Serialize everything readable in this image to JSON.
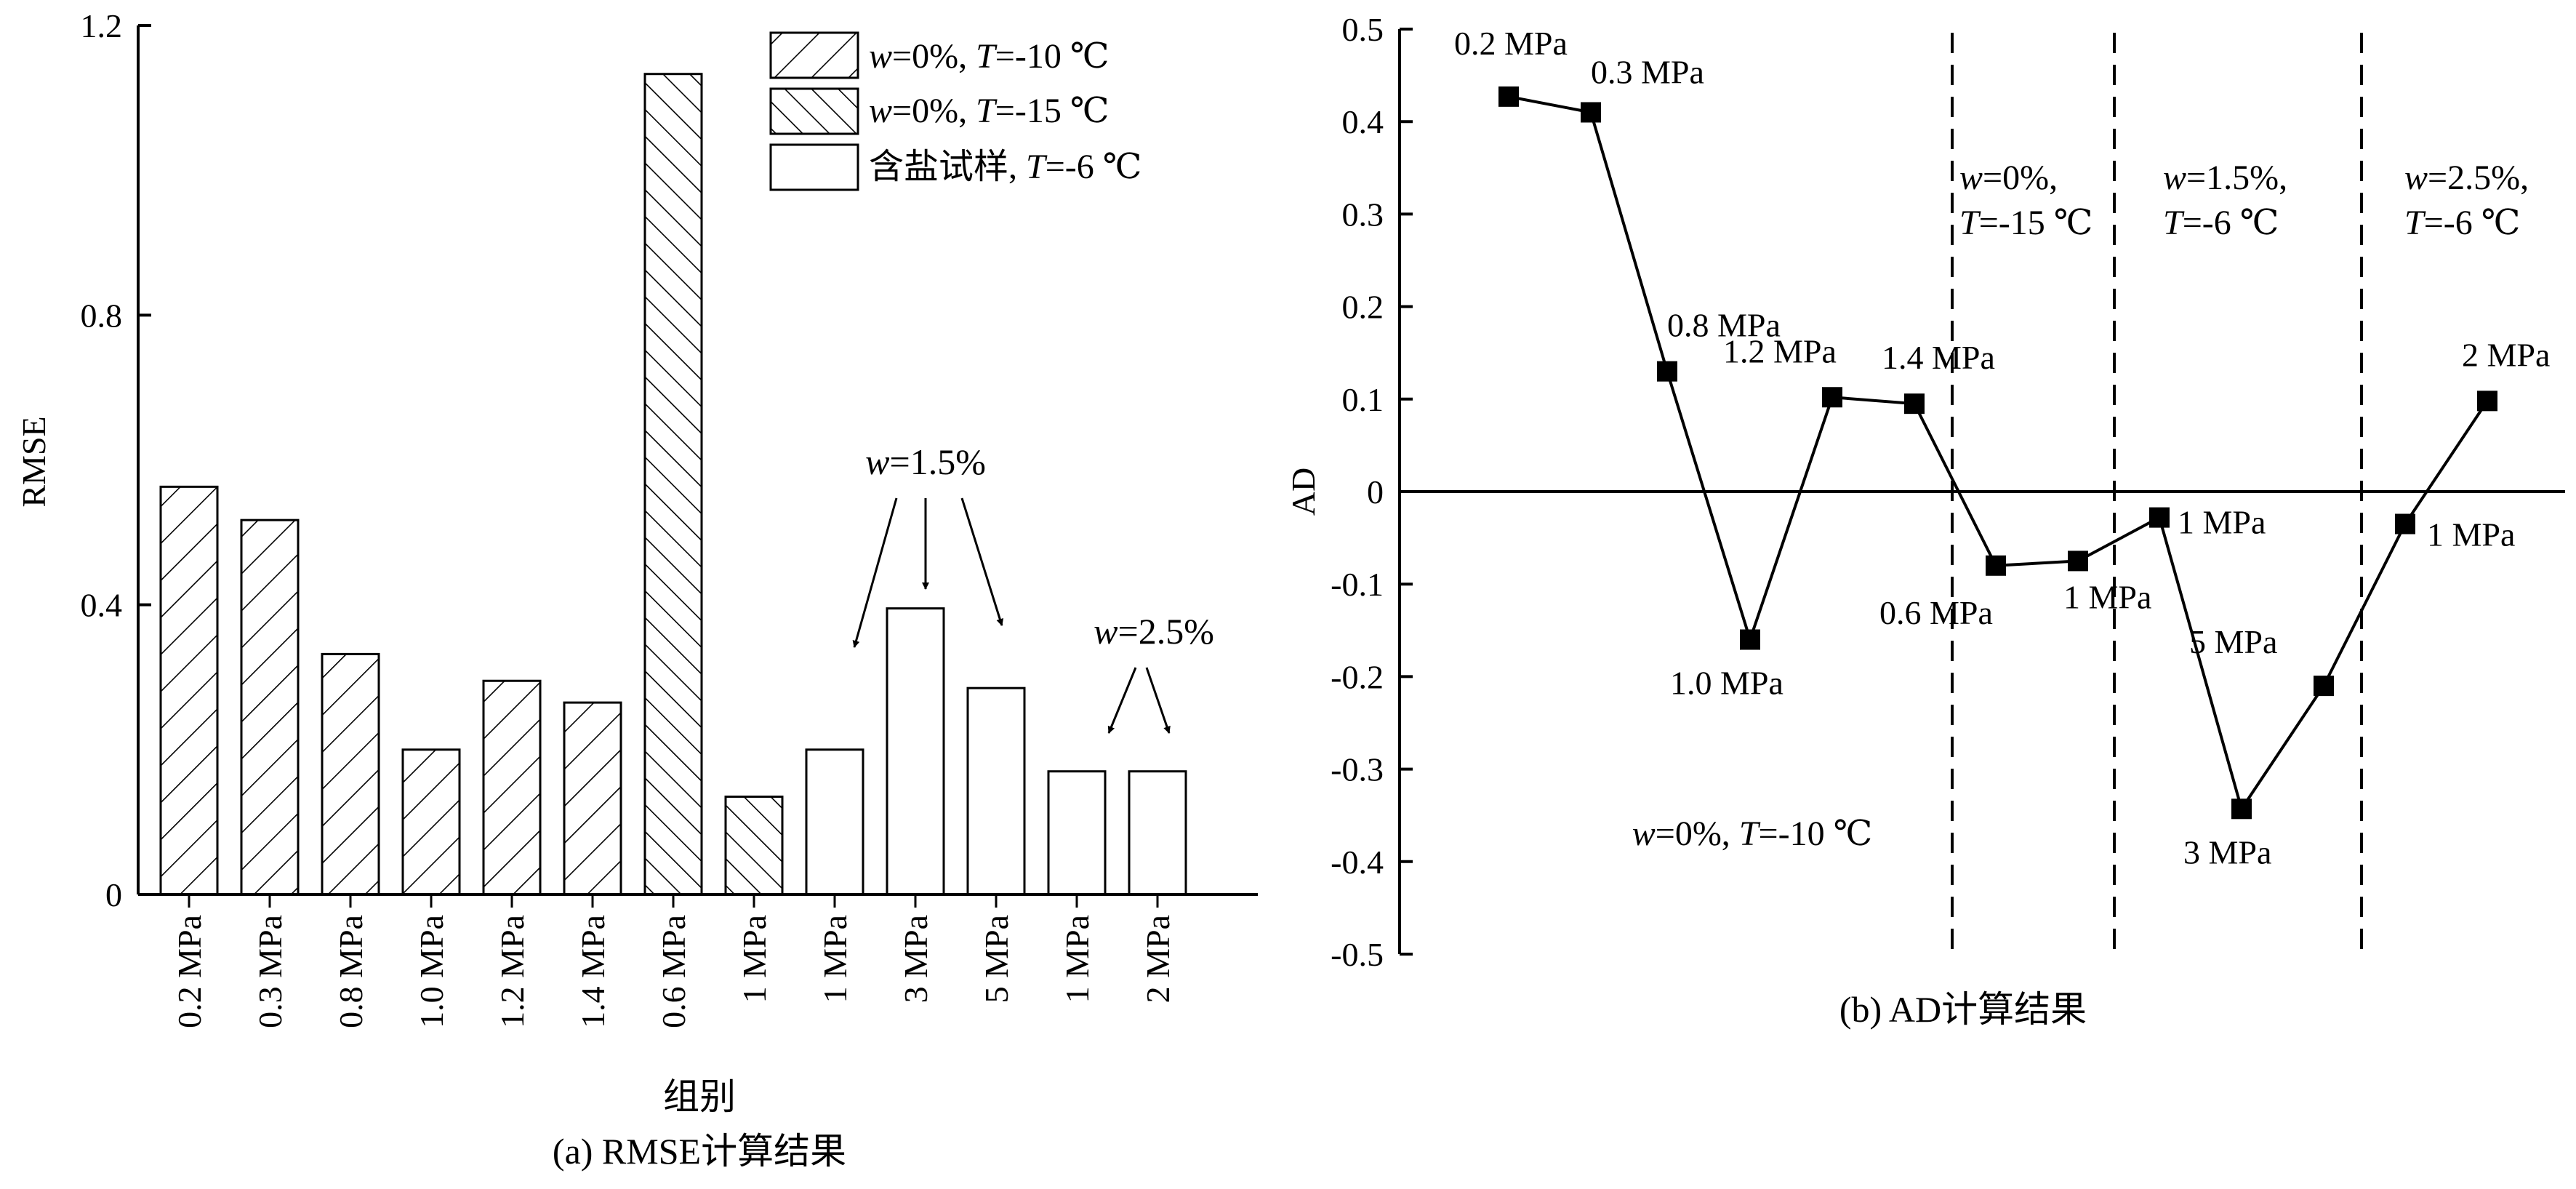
{
  "chart_data": [
    {
      "type": "bar",
      "title": "(a) RMSE计算结果",
      "xlabel": "组别",
      "ylabel": "RMSE",
      "ylim": [
        0,
        1.2
      ],
      "yticks": [
        "0",
        "0.4",
        "0.8",
        "1.2"
      ],
      "categories": [
        "0.2 MPa",
        "0.3 MPa",
        "0.8 MPa",
        "1.0 MPa",
        "1.2 MPa",
        "1.4 MPa",
        "0.6 MPa",
        "1 MPa",
        "1 MPa",
        "3 MPa",
        "5 MPa",
        "1 MPa",
        "2 MPa"
      ],
      "values": [
        0.563,
        0.517,
        0.332,
        0.2,
        0.295,
        0.265,
        1.133,
        0.135,
        0.2,
        0.395,
        0.285,
        0.17,
        0.17
      ],
      "groups": [
        0,
        0,
        0,
        0,
        0,
        0,
        1,
        1,
        2,
        2,
        2,
        2,
        2
      ],
      "legend": {
        "position": "top-right",
        "entries": [
          {
            "pattern": "hatch-forward",
            "w": "w",
            "mid": "=0%, ",
            "t": "T",
            "rest": "=-10 ℃"
          },
          {
            "pattern": "hatch-back",
            "w": "w",
            "mid": "=0%, ",
            "t": "T",
            "rest": "=-15 ℃"
          },
          {
            "pattern": "empty",
            "pre": "含盐试样, ",
            "t": "T",
            "rest": "=-6 ℃"
          }
        ]
      },
      "annotations": [
        {
          "w": "w",
          "rest": "=1.5%"
        },
        {
          "w": "w",
          "rest": "=2.5%"
        }
      ]
    },
    {
      "type": "line",
      "title": "(b) AD计算结果",
      "ylabel": "AD",
      "ylim": [
        -0.5,
        0.5
      ],
      "yticks": [
        "0.5",
        "0.4",
        "0.3",
        "0.2",
        "0.1",
        "0",
        "-0.1",
        "-0.2",
        "-0.3",
        "-0.4",
        "-0.5"
      ],
      "points": [
        {
          "label": "0.2 MPa",
          "y": 0.427
        },
        {
          "label": "0.3 MPa",
          "y": 0.41
        },
        {
          "label": "0.8 MPa",
          "y": 0.13
        },
        {
          "label": "1.0 MPa",
          "y": -0.16
        },
        {
          "label": "1.2 MPa",
          "y": 0.102
        },
        {
          "label": "1.4 MPa",
          "y": 0.095
        },
        {
          "label": "0.6 MPa",
          "y": -0.08
        },
        {
          "label": "1 MPa",
          "y": -0.075
        },
        {
          "label": "1 MPa",
          "y": -0.028
        },
        {
          "label": "3 MPa",
          "y": -0.343
        },
        {
          "label": "5 MPa",
          "y": -0.21
        },
        {
          "label": "1 MPa",
          "y": -0.035
        },
        {
          "label": "2 MPa",
          "y": 0.098
        }
      ],
      "zero_line": true,
      "region_labels": [
        {
          "w": "w",
          "mid": "=0%, ",
          "t": "T",
          "rest": "=-10 ℃"
        },
        {
          "w": "w",
          "mid": "=0%,",
          "t": "T",
          "rest": "=-15 ℃"
        },
        {
          "w": "w",
          "mid": "=1.5%,",
          "t": "T",
          "rest": "=-6 ℃"
        },
        {
          "w": "w",
          "mid": "=2.5%,",
          "t": "T",
          "rest": "=-6 ℃"
        }
      ]
    }
  ]
}
